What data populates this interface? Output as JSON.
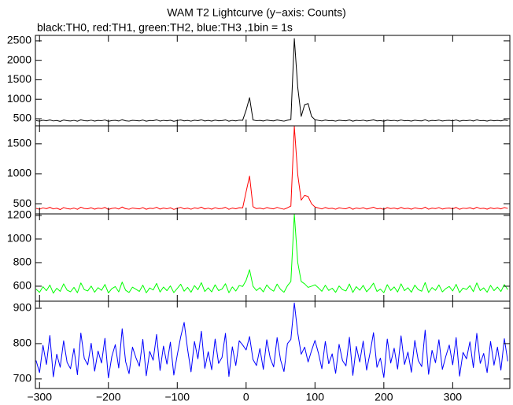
{
  "chart_data": [
    {
      "type": "line",
      "title": "WAM T2 Lightcurve (y−axis: Counts)",
      "subtitle": "black:TH0, red:TH1, green:TH2, blue:TH3 ,1bin = 1s",
      "x": [
        -305,
        -300,
        -295,
        -290,
        -285,
        -280,
        -275,
        -270,
        -265,
        -260,
        -255,
        -250,
        -245,
        -240,
        -235,
        -230,
        -225,
        -220,
        -215,
        -210,
        -205,
        -200,
        -195,
        -190,
        -185,
        -180,
        -175,
        -170,
        -165,
        -160,
        -155,
        -150,
        -145,
        -140,
        -135,
        -130,
        -125,
        -120,
        -115,
        -110,
        -105,
        -100,
        -95,
        -90,
        -85,
        -80,
        -75,
        -70,
        -65,
        -60,
        -55,
        -50,
        -45,
        -40,
        -35,
        -30,
        -25,
        -20,
        -15,
        -10,
        -5,
        0,
        5,
        10,
        15,
        20,
        25,
        30,
        35,
        40,
        45,
        50,
        55,
        60,
        65,
        70,
        75,
        80,
        85,
        90,
        95,
        100,
        105,
        110,
        115,
        120,
        125,
        130,
        135,
        140,
        145,
        150,
        155,
        160,
        165,
        170,
        175,
        180,
        185,
        190,
        195,
        200,
        205,
        210,
        215,
        220,
        225,
        230,
        235,
        240,
        245,
        250,
        255,
        260,
        265,
        270,
        275,
        280,
        285,
        290,
        295,
        300,
        305,
        310,
        315,
        320,
        325,
        330,
        335,
        340,
        345,
        350,
        355,
        360,
        365,
        370,
        375,
        380
      ],
      "xlim": [
        -306,
        383
      ],
      "ylim": [
        318,
        2640
      ],
      "yticks": [
        500,
        1000,
        1500,
        2000,
        2500
      ],
      "series": [
        {
          "name": "TH0",
          "color": "#000000",
          "values": [
            452,
            438,
            461,
            447,
            470,
            443,
            455,
            432,
            466,
            449,
            441,
            458,
            436,
            472,
            450,
            445,
            463,
            439,
            457,
            448,
            468,
            434,
            452,
            460,
            441,
            475,
            447,
            438,
            459,
            451,
            443,
            466,
            437,
            455,
            449,
            471,
            440,
            458,
            446,
            462,
            435,
            453,
            469,
            444,
            457,
            438,
            461,
            450,
            473,
            442,
            456,
            439,
            464,
            447,
            452,
            470,
            436,
            458,
            445,
            463,
            460,
            720,
            1040,
            470,
            448,
            457,
            441,
            466,
            452,
            444,
            469,
            451,
            438,
            462,
            480,
            2560,
            1300,
            560,
            860,
            890,
            560,
            475,
            458,
            443,
            467,
            449,
            455,
            438,
            462,
            451,
            446,
            470,
            437,
            459,
            448,
            463,
            441,
            455,
            472,
            444,
            452,
            436,
            465,
            449,
            458,
            442,
            468,
            447,
            455,
            439,
            461,
            450,
            444,
            473,
            438,
            457,
            449,
            466,
            441,
            453,
            459,
            445,
            468,
            437,
            456,
            450,
            463,
            442,
            471,
            448,
            455,
            439,
            462,
            447,
            458,
            444,
            466,
            451
          ]
        }
      ]
    },
    {
      "type": "line",
      "x": [
        -305,
        -300,
        -295,
        -290,
        -285,
        -280,
        -275,
        -270,
        -265,
        -260,
        -255,
        -250,
        -245,
        -240,
        -235,
        -230,
        -225,
        -220,
        -215,
        -210,
        -205,
        -200,
        -195,
        -190,
        -185,
        -180,
        -175,
        -170,
        -165,
        -160,
        -155,
        -150,
        -145,
        -140,
        -135,
        -130,
        -125,
        -120,
        -115,
        -110,
        -105,
        -100,
        -95,
        -90,
        -85,
        -80,
        -75,
        -70,
        -65,
        -60,
        -55,
        -50,
        -45,
        -40,
        -35,
        -30,
        -25,
        -20,
        -15,
        -10,
        -5,
        0,
        5,
        10,
        15,
        20,
        25,
        30,
        35,
        40,
        45,
        50,
        55,
        60,
        65,
        70,
        75,
        80,
        85,
        90,
        95,
        100,
        105,
        110,
        115,
        120,
        125,
        130,
        135,
        140,
        145,
        150,
        155,
        160,
        165,
        170,
        175,
        180,
        185,
        190,
        195,
        200,
        205,
        210,
        215,
        220,
        225,
        230,
        235,
        240,
        245,
        250,
        255,
        260,
        265,
        270,
        275,
        280,
        285,
        290,
        295,
        300,
        305,
        310,
        315,
        320,
        325,
        330,
        335,
        340,
        345,
        350,
        355,
        360,
        365,
        370,
        375,
        380
      ],
      "xlim": [
        -306,
        383
      ],
      "ylim": [
        330,
        1800
      ],
      "yticks": [
        500,
        1000,
        1500
      ],
      "series": [
        {
          "name": "TH1",
          "color": "#ff0000",
          "values": [
            422,
            408,
            431,
            417,
            440,
            413,
            425,
            402,
            436,
            419,
            411,
            428,
            406,
            442,
            420,
            415,
            433,
            409,
            427,
            418,
            438,
            404,
            422,
            430,
            411,
            445,
            417,
            408,
            429,
            421,
            413,
            436,
            407,
            425,
            419,
            441,
            410,
            428,
            416,
            432,
            405,
            423,
            439,
            414,
            427,
            408,
            431,
            420,
            443,
            412,
            426,
            409,
            434,
            417,
            422,
            440,
            406,
            428,
            415,
            433,
            430,
            700,
            960,
            450,
            418,
            427,
            411,
            436,
            422,
            414,
            439,
            421,
            408,
            432,
            460,
            1790,
            980,
            560,
            640,
            620,
            500,
            445,
            428,
            413,
            437,
            419,
            425,
            408,
            432,
            421,
            416,
            440,
            407,
            429,
            418,
            433,
            411,
            425,
            442,
            414,
            422,
            406,
            435,
            419,
            428,
            412,
            438,
            417,
            425,
            409,
            431,
            420,
            414,
            443,
            408,
            427,
            419,
            436,
            411,
            423,
            429,
            415,
            438,
            407,
            426,
            420,
            433,
            412,
            441,
            418,
            425,
            409,
            432,
            417,
            428,
            414,
            436,
            421
          ]
        }
      ]
    },
    {
      "type": "line",
      "x": [
        -305,
        -300,
        -295,
        -290,
        -285,
        -280,
        -275,
        -270,
        -265,
        -260,
        -255,
        -250,
        -245,
        -240,
        -235,
        -230,
        -225,
        -220,
        -215,
        -210,
        -205,
        -200,
        -195,
        -190,
        -185,
        -180,
        -175,
        -170,
        -165,
        -160,
        -155,
        -150,
        -145,
        -140,
        -135,
        -130,
        -125,
        -120,
        -115,
        -110,
        -105,
        -100,
        -95,
        -90,
        -85,
        -80,
        -75,
        -70,
        -65,
        -60,
        -55,
        -50,
        -45,
        -40,
        -35,
        -30,
        -25,
        -20,
        -15,
        -10,
        -5,
        0,
        5,
        10,
        15,
        20,
        25,
        30,
        35,
        40,
        45,
        50,
        55,
        60,
        65,
        70,
        75,
        80,
        85,
        90,
        95,
        100,
        105,
        110,
        115,
        120,
        125,
        130,
        135,
        140,
        145,
        150,
        155,
        160,
        165,
        170,
        175,
        180,
        185,
        190,
        195,
        200,
        205,
        210,
        215,
        220,
        225,
        230,
        235,
        240,
        245,
        250,
        255,
        260,
        265,
        270,
        275,
        280,
        285,
        290,
        295,
        300,
        305,
        310,
        315,
        320,
        325,
        330,
        335,
        340,
        345,
        350,
        355,
        360,
        365,
        370,
        375,
        380
      ],
      "xlim": [
        -306,
        383
      ],
      "ylim": [
        473,
        1213
      ],
      "yticks": [
        600,
        800,
        1000,
        1200
      ],
      "series": [
        {
          "name": "TH2",
          "color": "#00ff00",
          "values": [
            575,
            548,
            596,
            562,
            610,
            541,
            583,
            556,
            620,
            567,
            553,
            590,
            545,
            628,
            571,
            560,
            601,
            549,
            588,
            565,
            615,
            543,
            579,
            597,
            552,
            635,
            566,
            547,
            592,
            574,
            556,
            609,
            544,
            585,
            568,
            624,
            551,
            593,
            562,
            603,
            546,
            581,
            617,
            558,
            590,
            549,
            605,
            570,
            630,
            555,
            587,
            552,
            612,
            563,
            576,
            621,
            545,
            594,
            559,
            606,
            598,
            650,
            740,
            600,
            563,
            588,
            552,
            611,
            577,
            558,
            618,
            573,
            549,
            604,
            640,
            1210,
            800,
            640,
            620,
            590,
            600,
            612,
            586,
            557,
            608,
            564,
            583,
            548,
            602,
            571,
            560,
            619,
            547,
            596,
            566,
            607,
            553,
            585,
            626,
            556,
            575,
            545,
            613,
            564,
            594,
            551,
            620,
            562,
            587,
            549,
            609,
            571,
            558,
            631,
            547,
            589,
            565,
            611,
            552,
            580,
            598,
            560,
            616,
            546,
            584,
            572,
            605,
            554,
            628,
            563,
            586,
            549,
            607,
            562,
            593,
            555,
            614,
            571
          ]
        }
      ]
    },
    {
      "type": "line",
      "x": [
        -305,
        -300,
        -295,
        -290,
        -285,
        -280,
        -275,
        -270,
        -265,
        -260,
        -255,
        -250,
        -245,
        -240,
        -235,
        -230,
        -225,
        -220,
        -215,
        -210,
        -205,
        -200,
        -195,
        -190,
        -185,
        -180,
        -175,
        -170,
        -165,
        -160,
        -155,
        -150,
        -145,
        -140,
        -135,
        -130,
        -125,
        -120,
        -115,
        -110,
        -105,
        -100,
        -95,
        -90,
        -85,
        -80,
        -75,
        -70,
        -65,
        -60,
        -55,
        -50,
        -45,
        -40,
        -35,
        -30,
        -25,
        -20,
        -15,
        -10,
        -5,
        0,
        5,
        10,
        15,
        20,
        25,
        30,
        35,
        40,
        45,
        50,
        55,
        60,
        65,
        70,
        75,
        80,
        85,
        90,
        95,
        100,
        105,
        110,
        115,
        120,
        125,
        130,
        135,
        140,
        145,
        150,
        155,
        160,
        165,
        170,
        175,
        180,
        185,
        190,
        195,
        200,
        205,
        210,
        215,
        220,
        225,
        230,
        235,
        240,
        245,
        250,
        255,
        260,
        265,
        270,
        275,
        280,
        285,
        290,
        295,
        300,
        305,
        310,
        315,
        320,
        325,
        330,
        335,
        340,
        345,
        350,
        355,
        360,
        365,
        370,
        375,
        380
      ],
      "xlim": [
        -306,
        383
      ],
      "ylim": [
        673,
        920
      ],
      "yticks": [
        700,
        800,
        900
      ],
      "xticks": [
        {
          "value": -300,
          "label": "−300"
        },
        {
          "value": -200,
          "label": "−200"
        },
        {
          "value": -100,
          "label": "−100"
        },
        0,
        100,
        200,
        300
      ],
      "series": [
        {
          "name": "TH3",
          "color": "#0000ff",
          "values": [
            752,
            718,
            795,
            741,
            823,
            706,
            770,
            733,
            808,
            747,
            729,
            786,
            712,
            830,
            758,
            740,
            801,
            722,
            779,
            745,
            815,
            703,
            764,
            797,
            731,
            842,
            749,
            715,
            790,
            760,
            736,
            812,
            709,
            778,
            753,
            826,
            724,
            793,
            742,
            804,
            711,
            768,
            819,
            860,
            784,
            720,
            806,
            757,
            835,
            730,
            777,
            726,
            813,
            744,
            761,
            829,
            707,
            791,
            738,
            808,
            796,
            782,
            820,
            755,
            738,
            786,
            727,
            811,
            759,
            734,
            817,
            754,
            721,
            800,
            812,
            915,
            830,
            770,
            790,
            748,
            780,
            809,
            773,
            729,
            806,
            743,
            771,
            716,
            798,
            752,
            737,
            818,
            710,
            792,
            748,
            807,
            725,
            774,
            831,
            733,
            759,
            704,
            813,
            745,
            787,
            728,
            822,
            741,
            776,
            719,
            809,
            752,
            735,
            838,
            713,
            781,
            746,
            811,
            727,
            764,
            796,
            740,
            817,
            708,
            775,
            757,
            805,
            732,
            829,
            744,
            772,
            718,
            806,
            739,
            790,
            725,
            814,
            750
          ]
        }
      ]
    }
  ]
}
